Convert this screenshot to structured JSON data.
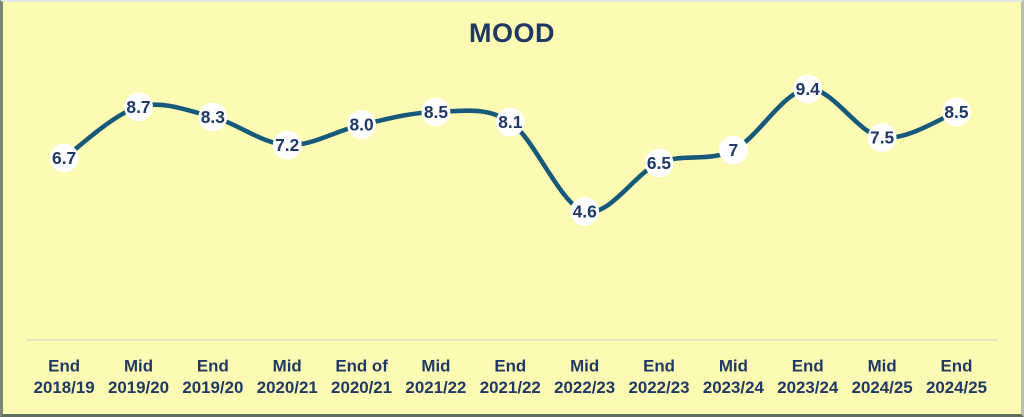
{
  "frame": {
    "background": "#FDFBB3",
    "border_top_color": "#E8E8E2",
    "border_right_color": "#B9BFAF",
    "border_bottom_color": "#64705F",
    "border_left_color": "#7C8873"
  },
  "chart_data": {
    "type": "line",
    "title": "MOOD",
    "categories": [
      [
        "End",
        "2018/19"
      ],
      [
        "Mid",
        "2019/20"
      ],
      [
        "End",
        "2019/20"
      ],
      [
        "Mid",
        "2020/21"
      ],
      [
        "End of",
        "2020/21"
      ],
      [
        "Mid",
        "2021/22"
      ],
      [
        "End",
        "2021/22"
      ],
      [
        "Mid",
        "2022/23"
      ],
      [
        "End",
        "2022/23"
      ],
      [
        "Mid",
        "2023/24"
      ],
      [
        "End",
        "2023/24"
      ],
      [
        "Mid",
        "2024/25"
      ],
      [
        "End",
        "2024/25"
      ]
    ],
    "series": [
      {
        "name": "MOOD",
        "values": [
          6.7,
          8.7,
          8.3,
          7.2,
          8.0,
          8.5,
          8.1,
          4.6,
          6.5,
          7.0,
          9.4,
          7.5,
          8.5
        ],
        "labels": [
          "6.7",
          "8.7",
          "8.3",
          "7.2",
          "8.0",
          "8.5",
          "8.1",
          "4.6",
          "6.5",
          "7",
          "9.4",
          "7.5",
          "8.5"
        ]
      }
    ],
    "smoothed": true,
    "grid": false,
    "legend": "none",
    "markers": "white-circle",
    "xlabel": "",
    "ylabel": "",
    "colors": {
      "line": "#17597A",
      "data_label": "#1F3864",
      "title": "#1F3864",
      "axis_label": "#1F3864",
      "marker_fill": "#FFFFFF",
      "background": "#FDFBB3",
      "axis_line": "#DAD8C0"
    }
  }
}
